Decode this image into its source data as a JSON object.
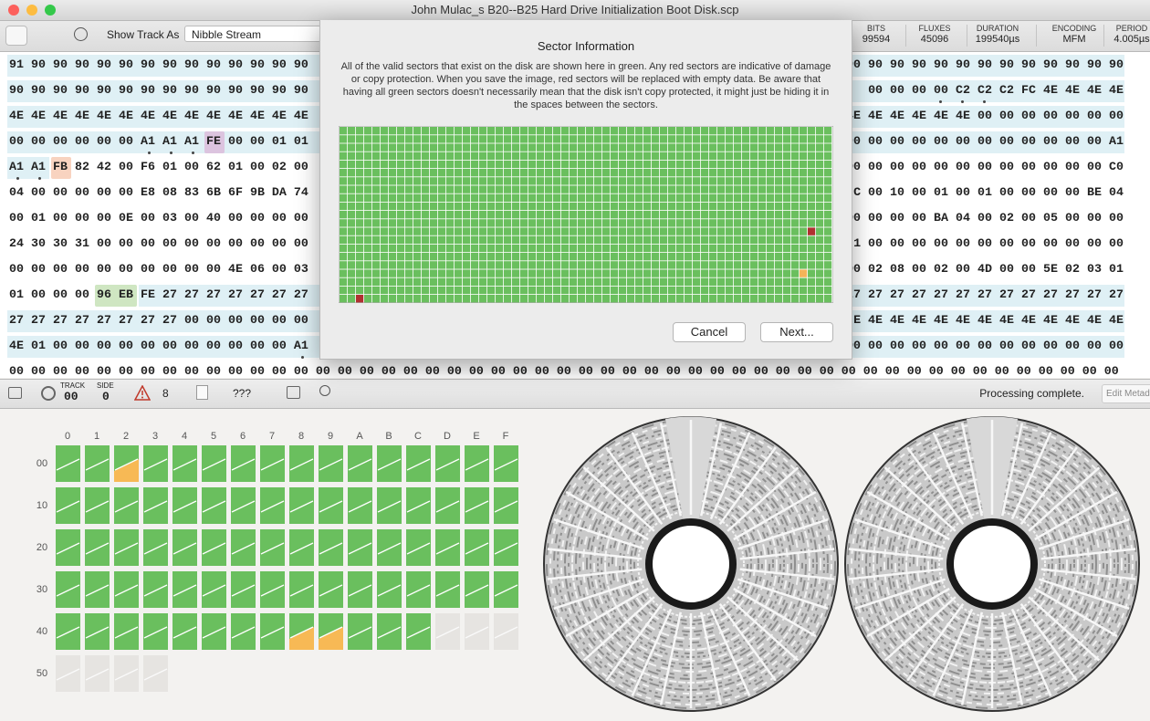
{
  "window": {
    "title": "John Mulac_s B20--B25 Hard Drive Initialization Boot Disk.scp"
  },
  "toolbar": {
    "show_track_as_label": "Show Track As",
    "show_track_as_value": "Nibble Stream",
    "stats": [
      {
        "label": "BITS",
        "value": "99594"
      },
      {
        "label": "FLUXES",
        "value": "45096"
      },
      {
        "label": "DURATION",
        "value": "199540µs"
      },
      {
        "label": "ENCODING",
        "value": "MFM"
      },
      {
        "label": "PERIOD",
        "value": "4.005µs"
      }
    ]
  },
  "hex_rows": [
    {
      "left": "91 90 90 90 90 90 90 90 90 90 90 90 90 90",
      "right": "90 90 90 90 90 90 90 90 90 90 90 90 90"
    },
    {
      "left": "90 90 90 90 90 90 90 90 90 90 90 90 90 90",
      "right": "00 00 00 00 C2 C2 C2 FC 4E 4E 4E 4E"
    },
    {
      "left": "4E 4E 4E 4E 4E 4E 4E 4E 4E 4E 4E 4E 4E 4E",
      "right": "E 4E 4E 4E 4E 4E 4E 00 00 00 00 00 00 00"
    },
    {
      "left": "00 00 00 00 00 00 A1 A1 A1 FE 00 00 01 01",
      "right": "3 00 00 00 00 00 00 00 00 00 00 00 00 A1"
    },
    {
      "left": "A1 A1 FB 82 42 00 F6 01 00 62 01 00 02 00",
      "right": "00 00 00 00 00 00 00 00 00 00 00 00 C0"
    },
    {
      "left": "04 00 00 00 00 00 E8 08 83 6B 6F 9B DA 74",
      "right": "C 00 10 00 01 00 01 00 00 00 00 BE 04"
    },
    {
      "left": "00 01 00 00 00 0E 00 03 00 40 00 00 00 00",
      "right": "00 00 00 00 BA 04 00 02 00 05 00 00 00"
    },
    {
      "left": "24 30 30 31 00 00 00 00 00 00 00 00 00 00",
      "right": "1 00 00 00 00 00 00 00 00 00 00 00 00"
    },
    {
      "left": "00 00 00 00 00 00 00 00 00 00 4E 06 00 03",
      "right": "00 02 08 00 02 00 4D 00 00 5E 02 03 01"
    },
    {
      "left": "01 00 00 00 96 EB FE 27 27 27 27 27 27 27",
      "right": "7 27 27 27 27 27 27 27 27 27 27 27 27 27"
    },
    {
      "left": "27 27 27 27 27 27 27 27 00 00 00 00 00 00",
      "right": "E 4E 4E 4E 4E 4E 4E 4E 4E 4E 4E 4E 4E"
    },
    {
      "left": "4E 01 00 00 00 00 00 00 00 00 00 00 00 A1",
      "right": "00 00 00 00 00 00 00 00 00 00 00 00 00"
    }
  ],
  "hex_last_row": "00 00 00 00 00 00 00 00 00 00 00 00 00 00 00 00 00 00 00 00 00 00 00 00 00 00 00 00 00 00 00 00 00 00 00 00 00 00 00 00 00 00 00 00 00 00 00 00 00 00 00",
  "dialog": {
    "title": "Sector Information",
    "message": "All of the valid sectors that exist on the disk are shown here in green. Any red sectors are indicative of damage or copy protection. When you save the image, red sectors will be replaced with empty data. Be aware that having all green sectors doesn't necessarily mean that the disk isn't copy protected, it might just be hiding it in the spaces between the sectors.",
    "cancel": "Cancel",
    "next": "Next..."
  },
  "status_bar": {
    "track_label": "TRACK",
    "track": "00",
    "side_label": "SIDE",
    "side": "0",
    "warnings": "8",
    "unknown": "???",
    "status": "Processing complete.",
    "edit_button": "Edit Metada"
  },
  "track_grid": {
    "columns": [
      "0",
      "1",
      "2",
      "3",
      "4",
      "5",
      "6",
      "7",
      "8",
      "9",
      "A",
      "B",
      "C",
      "D",
      "E",
      "F"
    ],
    "rows": [
      "00",
      "10",
      "20",
      "30",
      "40",
      "50"
    ]
  }
}
